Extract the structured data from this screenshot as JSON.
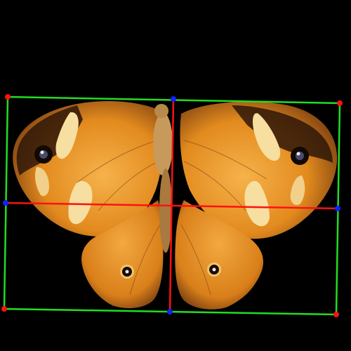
{
  "scene": {
    "subject": "butterfly",
    "background_color": "#000000"
  },
  "annotation": {
    "box_color": "#22dd22",
    "axis_color": "#ff1111",
    "corner_point_color": "#ff1111",
    "midpoint_color": "#1122ff"
  },
  "colors": {
    "wing_orange": "#e28a1e",
    "wing_light": "#f2b04a",
    "wing_dark": "#3a1d0a",
    "patch_cream": "#f6dfa0",
    "body": "#c79a5b"
  }
}
